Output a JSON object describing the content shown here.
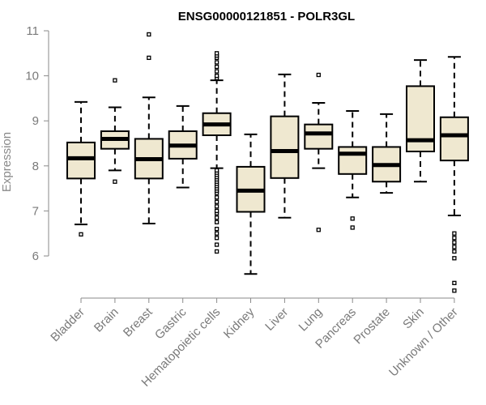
{
  "chart_data": {
    "type": "boxplot",
    "title": "ENSG00000121851 - POLR3GL",
    "ylabel": "Expression",
    "xlabel": "",
    "ylim": [
      5.05,
      11.1
    ],
    "yticks": [
      6,
      7,
      8,
      9,
      10,
      11
    ],
    "box_fill": "#efe8d0",
    "box_stroke": "#000000",
    "categories": [
      "Bladder",
      "Brain",
      "Breast",
      "Gastric",
      "Hematopoietic cells",
      "Kidney",
      "Liver",
      "Lung",
      "Pancreas",
      "Prostate",
      "Skin",
      "Unknown / Other"
    ],
    "boxes": [
      {
        "name": "Bladder",
        "whisker_low": 6.7,
        "q1": 7.72,
        "median": 8.17,
        "q3": 8.52,
        "whisker_high": 9.42,
        "outliers": [
          6.48
        ]
      },
      {
        "name": "Brain",
        "whisker_low": 7.9,
        "q1": 8.38,
        "median": 8.6,
        "q3": 8.77,
        "whisker_high": 9.3,
        "outliers": [
          7.65,
          9.9
        ]
      },
      {
        "name": "Breast",
        "whisker_low": 6.72,
        "q1": 7.72,
        "median": 8.15,
        "q3": 8.6,
        "whisker_high": 9.52,
        "outliers": [
          10.4,
          10.92
        ]
      },
      {
        "name": "Gastric",
        "whisker_low": 7.52,
        "q1": 8.16,
        "median": 8.45,
        "q3": 8.77,
        "whisker_high": 9.33,
        "outliers": []
      },
      {
        "name": "Hematopoietic cells",
        "whisker_low": 7.95,
        "q1": 8.68,
        "median": 8.92,
        "q3": 9.17,
        "whisker_high": 9.9,
        "outliers": [
          6.1,
          6.25,
          6.4,
          6.5,
          6.6,
          6.75,
          6.85,
          6.95,
          7.0,
          7.1,
          7.2,
          7.3,
          7.4,
          7.45,
          7.5,
          7.55,
          7.6,
          7.65,
          7.7,
          7.75,
          7.8,
          7.85,
          7.9,
          9.95,
          10.0,
          10.1,
          10.2,
          10.3,
          10.4,
          10.45,
          10.5
        ]
      },
      {
        "name": "Kidney",
        "whisker_low": 5.6,
        "q1": 6.98,
        "median": 7.45,
        "q3": 7.98,
        "whisker_high": 8.7,
        "outliers": []
      },
      {
        "name": "Liver",
        "whisker_low": 6.85,
        "q1": 7.73,
        "median": 8.33,
        "q3": 9.1,
        "whisker_high": 10.03,
        "outliers": []
      },
      {
        "name": "Lung",
        "whisker_low": 7.95,
        "q1": 8.38,
        "median": 8.72,
        "q3": 8.92,
        "whisker_high": 9.4,
        "outliers": [
          6.58,
          10.02
        ]
      },
      {
        "name": "Pancreas",
        "whisker_low": 7.3,
        "q1": 7.82,
        "median": 8.27,
        "q3": 8.42,
        "whisker_high": 9.22,
        "outliers": [
          6.63,
          6.83
        ]
      },
      {
        "name": "Prostate",
        "whisker_low": 7.4,
        "q1": 7.65,
        "median": 8.02,
        "q3": 8.42,
        "whisker_high": 9.15,
        "outliers": []
      },
      {
        "name": "Skin",
        "whisker_low": 7.65,
        "q1": 8.32,
        "median": 8.57,
        "q3": 9.77,
        "whisker_high": 10.35,
        "outliers": []
      },
      {
        "name": "Unknown / Other",
        "whisker_low": 6.9,
        "q1": 8.12,
        "median": 8.68,
        "q3": 9.08,
        "whisker_high": 10.42,
        "outliers": [
          5.23,
          5.4,
          5.95,
          6.1,
          6.2,
          6.3,
          6.4,
          6.5
        ]
      }
    ]
  }
}
